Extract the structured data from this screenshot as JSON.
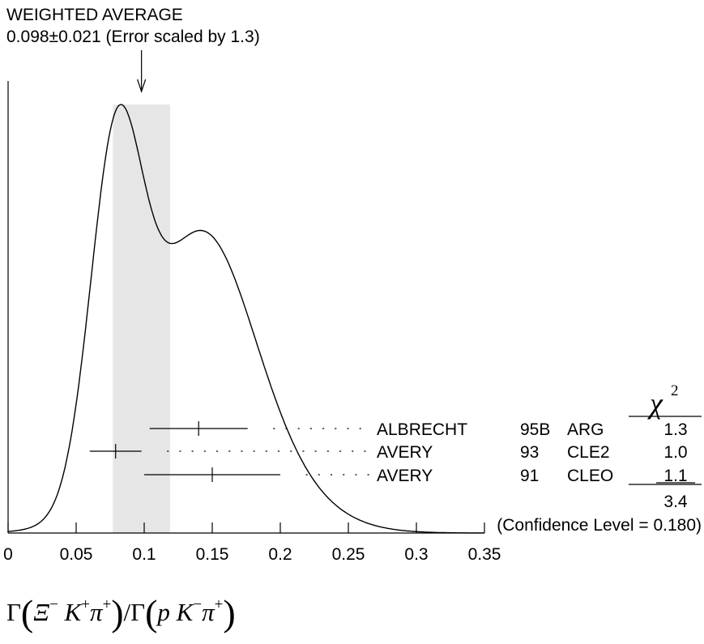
{
  "chart_data": {
    "type": "ideogram",
    "header": {
      "line1": "WEIGHTED AVERAGE",
      "line2": "0.098±0.021 (Error scaled by 1.3)"
    },
    "weighted_average": {
      "value": 0.098,
      "error": 0.021,
      "scale_factor": 1.3
    },
    "xlim": [
      0,
      0.35
    ],
    "x_ticks": [
      0,
      0.05,
      0.1,
      0.15,
      0.2,
      0.25,
      0.3,
      0.35
    ],
    "x_tick_labels": [
      "0",
      "0.05",
      "0.1",
      "0.15",
      "0.2",
      "0.25",
      "0.3",
      "0.35"
    ],
    "xlabel": {
      "gamma1": "Γ",
      "xi": "Ξ",
      "xi_sup": "−",
      "k1": "K",
      "k1_sup": "+",
      "pi1": "π",
      "pi1_sup": "+",
      "slash": "/Γ",
      "p": "p",
      "k2": "K",
      "k2_sup": "−",
      "pi2": "π",
      "pi2_sup": "+"
    },
    "chi2_header": "χ",
    "chi2_header_sup": "2",
    "measurements": [
      {
        "author": "ALBRECHT",
        "year": "95B",
        "experiment": "ARG",
        "value": 0.14,
        "lo": 0.104,
        "hi": 0.176,
        "chi2": "1.3"
      },
      {
        "author": "AVERY",
        "year": "93",
        "experiment": "CLE2",
        "value": 0.079,
        "lo": 0.06,
        "hi": 0.098,
        "chi2": "1.0"
      },
      {
        "author": "AVERY",
        "year": "91",
        "experiment": "CLEO",
        "value": 0.15,
        "lo": 0.1,
        "hi": 0.2,
        "chi2": "1.1"
      }
    ],
    "chi2_total": "3.4",
    "confidence_level": "(Confidence Level = 0.180)"
  }
}
